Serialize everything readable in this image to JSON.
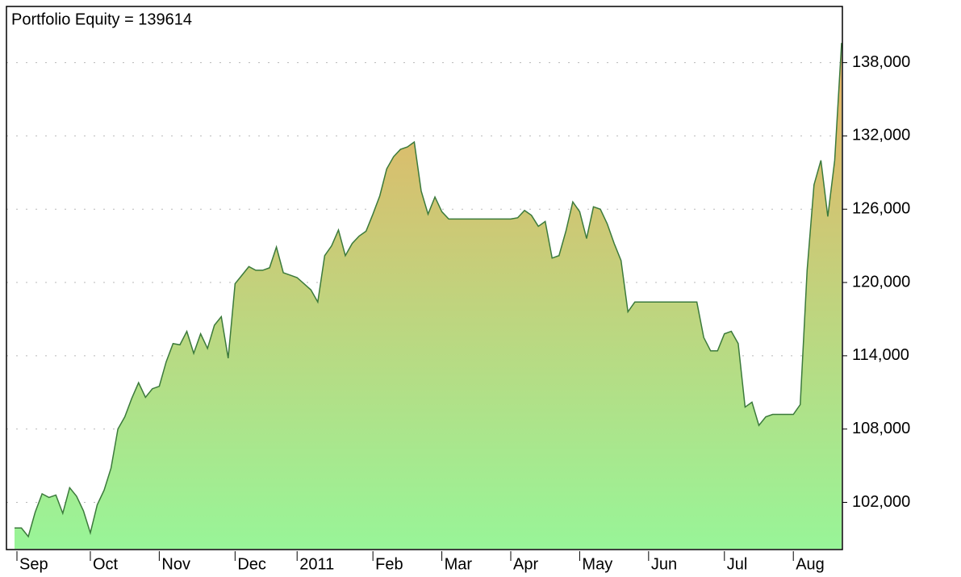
{
  "chart_data": {
    "type": "area",
    "title": "Portfolio Equity = 139614",
    "categories": [
      "Sep",
      null,
      null,
      null,
      null,
      null,
      null,
      null,
      null,
      null,
      null,
      "Oct",
      null,
      null,
      null,
      null,
      null,
      null,
      null,
      null,
      null,
      "Nov",
      null,
      null,
      null,
      null,
      null,
      null,
      null,
      null,
      null,
      null,
      "Dec",
      null,
      null,
      null,
      null,
      null,
      null,
      null,
      null,
      "2011",
      null,
      null,
      null,
      null,
      null,
      null,
      null,
      null,
      null,
      null,
      "Feb",
      null,
      null,
      null,
      null,
      null,
      null,
      null,
      null,
      null,
      "Mar",
      null,
      null,
      null,
      null,
      null,
      null,
      null,
      null,
      null,
      "Apr",
      null,
      null,
      null,
      null,
      null,
      null,
      null,
      null,
      null,
      "May",
      null,
      null,
      null,
      null,
      null,
      null,
      null,
      null,
      null,
      "Jun",
      null,
      null,
      null,
      null,
      null,
      null,
      null,
      null,
      null,
      null,
      "Jul",
      null,
      null,
      null,
      null,
      null,
      null,
      null,
      null,
      null,
      "Aug",
      null,
      null,
      null,
      null,
      null,
      null,
      null
    ],
    "values": [
      99900,
      99900,
      99200,
      101200,
      102700,
      102400,
      102600,
      101100,
      103200,
      102500,
      101300,
      99500,
      101800,
      103000,
      104800,
      108000,
      109000,
      110500,
      111800,
      110600,
      111300,
      111500,
      113500,
      115000,
      114900,
      116000,
      114200,
      115800,
      114600,
      116500,
      117200,
      113800,
      119900,
      120600,
      121300,
      121000,
      121000,
      121200,
      122900,
      120800,
      120600,
      120400,
      119900,
      119400,
      118400,
      122200,
      123000,
      124300,
      122200,
      123200,
      123800,
      124200,
      125600,
      127100,
      129300,
      130300,
      130900,
      131100,
      131500,
      127500,
      125600,
      127000,
      125800,
      125200,
      125200,
      125200,
      125200,
      125200,
      125200,
      125200,
      125200,
      125200,
      125200,
      125300,
      125900,
      125500,
      124600,
      125000,
      122000,
      122200,
      124200,
      126600,
      125800,
      123600,
      126200,
      126000,
      124800,
      123200,
      121800,
      117600,
      118400,
      118400,
      118400,
      118400,
      118400,
      118400,
      118400,
      118400,
      118400,
      118400,
      115500,
      114400,
      114400,
      115800,
      116000,
      115000,
      109800,
      110200,
      108300,
      109000,
      109200,
      109200,
      109200,
      109200,
      110000,
      121000,
      128000,
      130000,
      125400,
      130000,
      139614
    ],
    "color": "#3b7a3b",
    "fill_gradient": [
      "#eab062",
      "#98f598"
    ],
    "ylim": [
      98200,
      142600
    ],
    "yticks": [
      {
        "value": 102000,
        "label": "102,000"
      },
      {
        "value": 108000,
        "label": "108,000"
      },
      {
        "value": 114000,
        "label": "114,000"
      },
      {
        "value": 120000,
        "label": "120,000"
      },
      {
        "value": 126000,
        "label": "126,000"
      },
      {
        "value": 132000,
        "label": "132,000"
      },
      {
        "value": 138000,
        "label": "138,000"
      }
    ],
    "grid": true
  }
}
